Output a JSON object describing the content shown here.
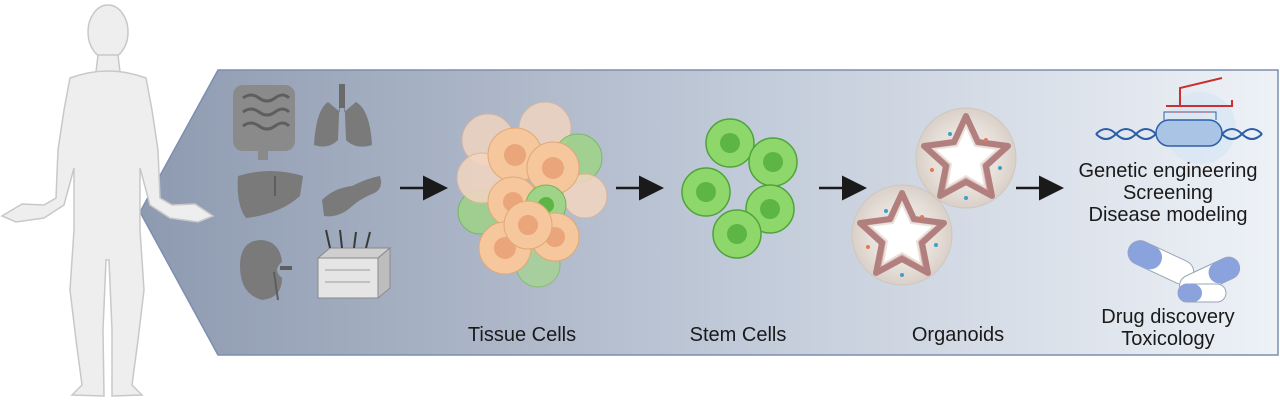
{
  "stages": [
    {
      "id": "tissue",
      "label": "Tissue Cells"
    },
    {
      "id": "stem",
      "label": "Stem Cells"
    },
    {
      "id": "organoids",
      "label": "Organoids"
    }
  ],
  "applications": {
    "group1": [
      "Genetic engineering",
      "Screening",
      "Disease modeling"
    ],
    "group2": [
      "Drug discovery",
      "Toxicology"
    ]
  },
  "organs": [
    "intestine-icon",
    "lungs-icon",
    "liver-icon",
    "pancreas-icon",
    "kidney-icon",
    "skin-icon"
  ],
  "colors": {
    "panel_left": "#9aa6bb",
    "panel_right": "#e6ebf3",
    "panel_border": "#7c8fb0",
    "organ_gray": "#7a7a7a",
    "tissue_orange": "#f6c79c",
    "tissue_green": "#8fcf6f",
    "stem_green": "#8ed86b",
    "stem_nucleus": "#5cb545",
    "human": "#eeeeee"
  }
}
